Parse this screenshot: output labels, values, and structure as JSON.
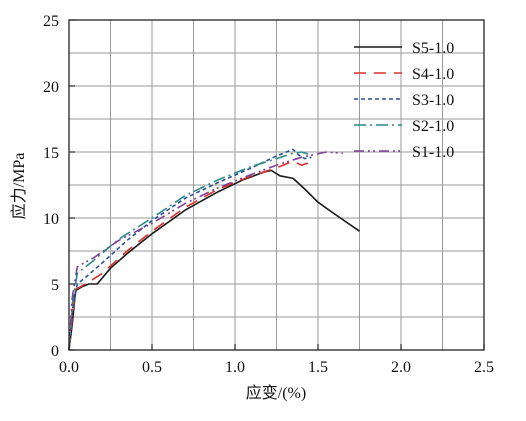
{
  "chart_data": {
    "type": "line",
    "title": "",
    "xlabel": "应变/(%)",
    "ylabel": "应力/MPa",
    "xlim": [
      0,
      2.5
    ],
    "ylim": [
      0,
      25
    ],
    "x_ticks": [
      "0.0",
      "0.5",
      "1.0",
      "1.5",
      "2.0",
      "2.5"
    ],
    "y_ticks": [
      "0",
      "5",
      "10",
      "15",
      "20",
      "25"
    ],
    "grid": true,
    "legend_position": "top-right",
    "series": [
      {
        "name": "S5-1.0",
        "color": "#1a1a1a",
        "style": "solid",
        "points": [
          [
            0,
            0
          ],
          [
            0.02,
            2.0
          ],
          [
            0.04,
            4.5
          ],
          [
            0.08,
            4.8
          ],
          [
            0.12,
            5.0
          ],
          [
            0.17,
            5.0
          ],
          [
            0.25,
            6.2
          ],
          [
            0.35,
            7.3
          ],
          [
            0.5,
            8.8
          ],
          [
            0.7,
            10.6
          ],
          [
            0.9,
            12.0
          ],
          [
            1.05,
            12.9
          ],
          [
            1.18,
            13.5
          ],
          [
            1.22,
            13.6
          ],
          [
            1.27,
            13.2
          ],
          [
            1.35,
            13.0
          ],
          [
            1.42,
            12.2
          ],
          [
            1.5,
            11.2
          ],
          [
            1.6,
            10.3
          ],
          [
            1.75,
            9.0
          ]
        ]
      },
      {
        "name": "S4-1.0",
        "color": "#d9332b",
        "style": "dash",
        "points": [
          [
            0,
            0
          ],
          [
            0.02,
            2.5
          ],
          [
            0.04,
            4.6
          ],
          [
            0.1,
            5.0
          ],
          [
            0.2,
            5.8
          ],
          [
            0.35,
            7.5
          ],
          [
            0.5,
            9.0
          ],
          [
            0.7,
            10.8
          ],
          [
            0.9,
            12.2
          ],
          [
            1.1,
            13.2
          ],
          [
            1.25,
            13.8
          ],
          [
            1.35,
            14.3
          ],
          [
            1.4,
            14.0
          ],
          [
            1.45,
            14.2
          ]
        ]
      },
      {
        "name": "S3-1.0",
        "color": "#2a4f9a",
        "style": "dotted",
        "points": [
          [
            0,
            0
          ],
          [
            0.02,
            3.0
          ],
          [
            0.05,
            5.0
          ],
          [
            0.1,
            5.5
          ],
          [
            0.2,
            6.6
          ],
          [
            0.35,
            8.3
          ],
          [
            0.5,
            9.8
          ],
          [
            0.7,
            11.5
          ],
          [
            0.9,
            12.7
          ],
          [
            1.1,
            13.8
          ],
          [
            1.25,
            14.7
          ],
          [
            1.35,
            15.2
          ],
          [
            1.38,
            14.8
          ],
          [
            1.42,
            14.5
          ],
          [
            1.46,
            14.6
          ]
        ]
      },
      {
        "name": "S2-1.0",
        "color": "#2a8a8a",
        "style": "dashdot",
        "points": [
          [
            0,
            0
          ],
          [
            0.02,
            3.5
          ],
          [
            0.05,
            5.8
          ],
          [
            0.15,
            6.8
          ],
          [
            0.3,
            8.4
          ],
          [
            0.5,
            10.0
          ],
          [
            0.7,
            11.7
          ],
          [
            0.9,
            12.9
          ],
          [
            1.1,
            13.9
          ],
          [
            1.25,
            14.5
          ],
          [
            1.35,
            14.9
          ],
          [
            1.4,
            15.0
          ],
          [
            1.45,
            14.8
          ]
        ]
      },
      {
        "name": "S1-1.0",
        "color": "#7d3f98",
        "style": "dashdotdot",
        "points": [
          [
            0,
            0
          ],
          [
            0.02,
            4.0
          ],
          [
            0.05,
            6.3
          ],
          [
            0.15,
            7.0
          ],
          [
            0.3,
            8.3
          ],
          [
            0.5,
            9.6
          ],
          [
            0.7,
            11.1
          ],
          [
            0.9,
            12.3
          ],
          [
            1.1,
            13.3
          ],
          [
            1.25,
            14.0
          ],
          [
            1.4,
            14.6
          ],
          [
            1.55,
            15.0
          ],
          [
            1.65,
            14.9
          ]
        ]
      }
    ]
  }
}
